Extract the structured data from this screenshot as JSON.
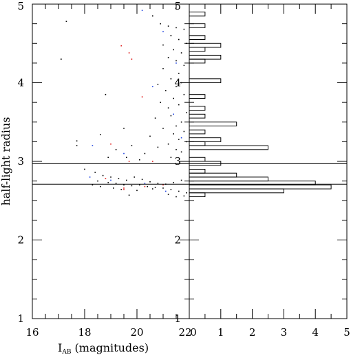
{
  "chart_data": [
    {
      "type": "scatter",
      "xlabel_main": "I",
      "xlabel_sub": "AB",
      "xlabel_rest": " (magnitudes)",
      "ylabel": "half-light radius",
      "xlim": [
        16,
        22
      ],
      "ylim": [
        1,
        5
      ],
      "x_ticks": [
        16,
        18,
        20,
        22
      ],
      "x_tick_labels": [
        "16",
        "18",
        "20",
        "22"
      ],
      "y_ticks": [
        1,
        2,
        3,
        4,
        5
      ],
      "y_tick_labels": [
        "1",
        "2",
        "3",
        "4",
        "5"
      ],
      "hlines": [
        2.97,
        2.71
      ],
      "series": [
        {
          "color": "#000000",
          "points": [
            [
              17.3,
              4.78
            ],
            [
              17.1,
              4.3
            ],
            [
              18.8,
              3.85
            ],
            [
              19.5,
              3.42
            ],
            [
              20.6,
              4.85
            ],
            [
              20.9,
              4.75
            ],
            [
              21.2,
              4.72
            ],
            [
              21.5,
              4.7
            ],
            [
              21.8,
              4.68
            ],
            [
              21.3,
              4.6
            ],
            [
              21.6,
              4.55
            ],
            [
              21.9,
              4.5
            ],
            [
              21.0,
              4.48
            ],
            [
              21.4,
              4.42
            ],
            [
              21.7,
              4.38
            ],
            [
              21.2,
              4.32
            ],
            [
              21.5,
              4.28
            ],
            [
              21.8,
              4.22
            ],
            [
              21.0,
              4.18
            ],
            [
              21.6,
              4.12
            ],
            [
              21.3,
              4.05
            ],
            [
              21.7,
              4.0
            ],
            [
              20.8,
              3.98
            ],
            [
              21.5,
              3.95
            ],
            [
              21.1,
              3.9
            ],
            [
              21.8,
              3.85
            ],
            [
              21.4,
              3.8
            ],
            [
              20.9,
              3.75
            ],
            [
              21.6,
              3.72
            ],
            [
              21.2,
              3.68
            ],
            [
              21.9,
              3.62
            ],
            [
              21.3,
              3.58
            ],
            [
              20.7,
              3.55
            ],
            [
              21.7,
              3.5
            ],
            [
              21.5,
              3.45
            ],
            [
              21.0,
              3.42
            ],
            [
              21.8,
              3.38
            ],
            [
              21.4,
              3.35
            ],
            [
              20.5,
              3.32
            ],
            [
              21.6,
              3.28
            ],
            [
              21.9,
              3.25
            ],
            [
              21.2,
              3.22
            ],
            [
              20.8,
              3.18
            ],
            [
              21.5,
              3.15
            ],
            [
              21.7,
              3.12
            ],
            [
              17.7,
              3.26
            ],
            [
              17.7,
              3.2
            ],
            [
              18.6,
              3.34
            ],
            [
              19.2,
              3.15
            ],
            [
              19.8,
              3.2
            ],
            [
              20.3,
              3.1
            ],
            [
              18.9,
              3.05
            ],
            [
              19.6,
              3.05
            ],
            [
              20.1,
              3.02
            ],
            [
              21.3,
              3.05
            ],
            [
              18.0,
              2.9
            ],
            [
              18.4,
              2.86
            ],
            [
              18.7,
              2.82
            ],
            [
              19.0,
              2.8
            ],
            [
              19.3,
              2.78
            ],
            [
              19.6,
              2.76
            ],
            [
              19.9,
              2.8
            ],
            [
              20.2,
              2.77
            ],
            [
              20.5,
              2.74
            ],
            [
              20.8,
              2.72
            ],
            [
              21.1,
              2.71
            ],
            [
              21.4,
              2.73
            ],
            [
              21.7,
              2.76
            ],
            [
              18.5,
              2.75
            ],
            [
              18.9,
              2.73
            ],
            [
              19.2,
              2.72
            ],
            [
              19.5,
              2.7
            ],
            [
              19.8,
              2.69
            ],
            [
              20.1,
              2.7
            ],
            [
              20.4,
              2.68
            ],
            [
              20.7,
              2.67
            ],
            [
              21.0,
              2.66
            ],
            [
              21.3,
              2.64
            ],
            [
              21.6,
              2.62
            ],
            [
              21.9,
              2.6
            ],
            [
              18.3,
              2.7
            ],
            [
              18.6,
              2.68
            ],
            [
              19.1,
              2.66
            ],
            [
              19.4,
              2.64
            ],
            [
              20.0,
              2.63
            ],
            [
              20.6,
              2.65
            ],
            [
              21.2,
              2.58
            ],
            [
              21.5,
              2.55
            ],
            [
              21.8,
              2.56
            ],
            [
              19.7,
              2.57
            ]
          ]
        },
        {
          "color": "#1a3fe0",
          "points": [
            [
              20.2,
              4.92
            ],
            [
              21.0,
              4.65
            ],
            [
              21.5,
              4.25
            ],
            [
              20.6,
              3.95
            ],
            [
              21.4,
              3.6
            ],
            [
              21.7,
              3.3
            ],
            [
              18.3,
              3.2
            ],
            [
              19.5,
              3.1
            ],
            [
              18.2,
              2.8
            ],
            [
              19.0,
              2.76
            ],
            [
              20.3,
              2.72
            ],
            [
              21.1,
              2.62
            ]
          ]
        },
        {
          "color": "#e01a1a",
          "points": [
            [
              19.4,
              4.47
            ],
            [
              19.7,
              4.38
            ],
            [
              19.8,
              4.3
            ],
            [
              20.2,
              3.82
            ],
            [
              19.0,
              3.22
            ],
            [
              19.7,
              3.0
            ],
            [
              20.6,
              3.0
            ],
            [
              18.8,
              2.78
            ],
            [
              19.5,
              2.66
            ],
            [
              19.5,
              2.64
            ],
            [
              20.3,
              2.68
            ],
            [
              21.0,
              2.7
            ]
          ]
        }
      ]
    },
    {
      "type": "bar",
      "orientation": "horizontal",
      "xlim": [
        0,
        5
      ],
      "ylim": [
        1,
        5
      ],
      "x_ticks": [
        0,
        1,
        2,
        3,
        4,
        5
      ],
      "x_tick_labels": [
        "0",
        "1",
        "2",
        "3",
        "4",
        "5"
      ],
      "y_ticks": [
        1,
        2,
        3,
        4,
        5
      ],
      "y_tick_labels": [
        "1",
        "2",
        "3",
        "4",
        "5"
      ],
      "bin_width": 0.05,
      "hlines": [
        2.97,
        2.71
      ],
      "bins": [
        {
          "y": 2.55,
          "count": 0.5
        },
        {
          "y": 2.6,
          "count": 3.0
        },
        {
          "y": 2.65,
          "count": 4.5
        },
        {
          "y": 2.7,
          "count": 4.0
        },
        {
          "y": 2.75,
          "count": 2.5
        },
        {
          "y": 2.8,
          "count": 1.5
        },
        {
          "y": 2.85,
          "count": 0.5
        },
        {
          "y": 2.95,
          "count": 1.0
        },
        {
          "y": 3.0,
          "count": 0.5
        },
        {
          "y": 3.15,
          "count": 2.5
        },
        {
          "y": 3.2,
          "count": 0.5
        },
        {
          "y": 3.25,
          "count": 1.0
        },
        {
          "y": 3.35,
          "count": 0.5
        },
        {
          "y": 3.45,
          "count": 1.5
        },
        {
          "y": 3.55,
          "count": 0.5
        },
        {
          "y": 3.65,
          "count": 0.5
        },
        {
          "y": 3.8,
          "count": 0.5
        },
        {
          "y": 4.0,
          "count": 1.0
        },
        {
          "y": 4.25,
          "count": 0.5
        },
        {
          "y": 4.3,
          "count": 1.0
        },
        {
          "y": 4.4,
          "count": 0.5
        },
        {
          "y": 4.45,
          "count": 1.0
        },
        {
          "y": 4.55,
          "count": 0.5
        },
        {
          "y": 4.7,
          "count": 0.5
        },
        {
          "y": 4.85,
          "count": 0.5
        }
      ]
    }
  ]
}
